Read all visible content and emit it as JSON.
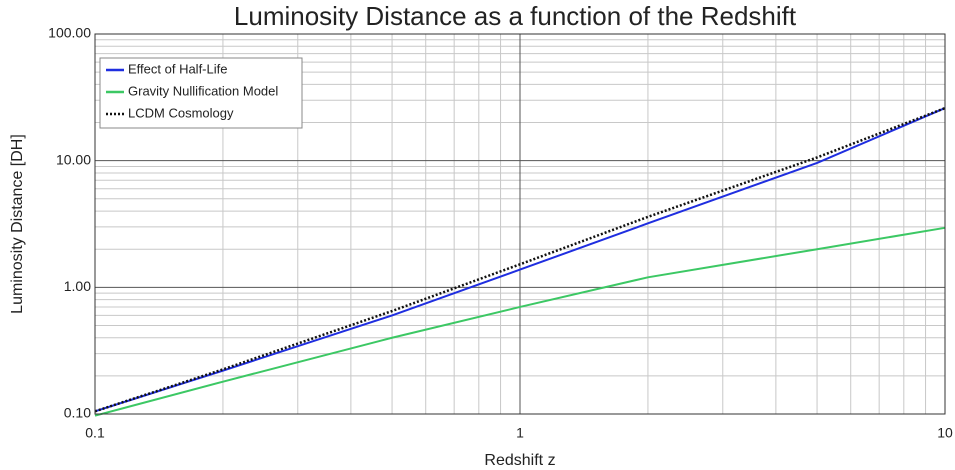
{
  "chart_data": {
    "type": "line",
    "title": "Luminosity Distance as a function of the Redshift",
    "x_label": "Redshift  z",
    "y_label": "Luminosity Distance [DH]",
    "x_scale": "log",
    "y_scale": "log",
    "xlim": [
      0.1,
      10
    ],
    "ylim": [
      0.1,
      100
    ],
    "xticks": [
      0.1,
      1,
      10
    ],
    "yticks": [
      {
        "value": 0.1,
        "label": "0.10"
      },
      {
        "value": 1,
        "label": "1.00"
      },
      {
        "value": 10,
        "label": "10.00"
      },
      {
        "value": 100,
        "label": "100.00"
      }
    ],
    "x_minor_ticks": [
      0.2,
      0.3,
      0.4,
      0.5,
      0.6,
      0.7,
      0.8,
      0.9,
      2,
      3,
      4,
      5,
      6,
      7,
      8,
      9
    ],
    "y_minor_ticks": [
      0.2,
      0.3,
      0.4,
      0.5,
      0.6,
      0.7,
      0.8,
      0.9,
      2,
      3,
      4,
      5,
      6,
      7,
      8,
      9,
      20,
      30,
      40,
      50,
      60,
      70,
      80,
      90
    ],
    "grid": true,
    "legend": "upper left",
    "x": [
      0.1,
      0.2,
      0.5,
      1,
      2,
      5,
      10
    ],
    "series": [
      {
        "name": "Effect of Half-Life",
        "color": "#1f2ee0",
        "style": "solid",
        "values": [
          0.105,
          0.22,
          0.6,
          1.38,
          3.2,
          9.6,
          26
        ]
      },
      {
        "name": "Gravity Nullification Model",
        "color": "#3cc864",
        "style": "solid",
        "values": [
          0.097,
          0.18,
          0.4,
          0.7,
          1.2,
          2.0,
          2.95
        ]
      },
      {
        "name": "LCDM Cosmology",
        "color": "#111111",
        "style": "dotted",
        "values": [
          0.105,
          0.225,
          0.65,
          1.52,
          3.6,
          10.6,
          26
        ]
      }
    ]
  }
}
